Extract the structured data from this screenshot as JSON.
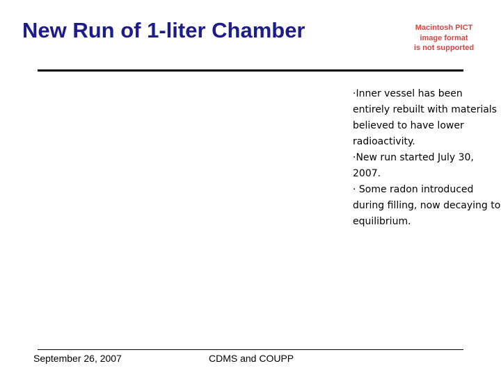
{
  "header": {
    "title": "New Run of 1-liter Chamber"
  },
  "image_placeholder": {
    "lines": [
      "Macintosh PICT",
      "image format",
      "is not supported"
    ]
  },
  "bullets": [
    {
      "lines": [
        "·Inner vessel has been",
        "entirely rebuilt with materials",
        "believed to have lower",
        "radioactivity."
      ]
    },
    {
      "lines": [
        "·New run started July 30,",
        "2007."
      ]
    },
    {
      "lines": [
        "· Some radon introduced",
        "during filling, now decaying to",
        "equilibrium."
      ]
    }
  ],
  "footer": {
    "date": "September 26, 2007",
    "center": "CDMS and COUPP"
  }
}
